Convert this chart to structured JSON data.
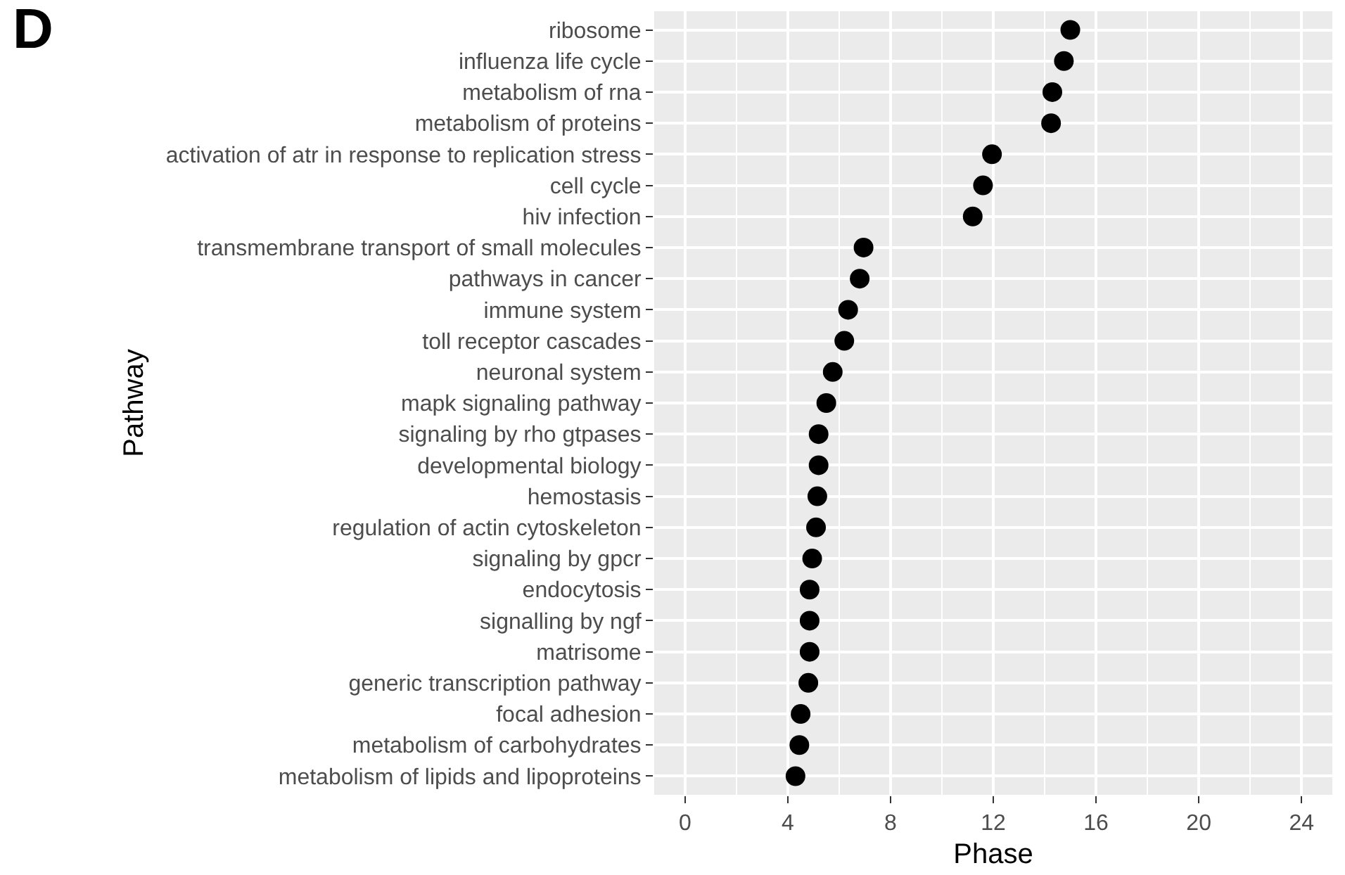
{
  "chart_data": {
    "type": "scatter",
    "xlabel": "Phase",
    "ylabel": "Pathway",
    "annotations": [
      "D"
    ],
    "categories": [
      "ribosome",
      "influenza life cycle",
      "metabolism of rna",
      "metabolism of proteins",
      "activation of atr in response to replication stress",
      "cell cycle",
      "hiv infection",
      "transmembrane transport of small molecules",
      "pathways in cancer",
      "immune system",
      "toll receptor cascades",
      "neuronal system",
      "mapk signaling pathway",
      "signaling by rho gtpases",
      "developmental biology",
      "hemostasis",
      "regulation of actin cytoskeleton",
      "signaling by gpcr",
      "endocytosis",
      "signalling by ngf",
      "matrisome",
      "generic transcription pathway",
      "focal adhesion",
      "metabolism of carbohydrates",
      "metabolism of lipids and lipoproteins"
    ],
    "values": [
      15.0,
      14.75,
      14.3,
      14.25,
      11.95,
      11.6,
      11.2,
      6.95,
      6.8,
      6.35,
      6.2,
      5.75,
      5.5,
      5.2,
      5.2,
      5.15,
      5.1,
      4.95,
      4.85,
      4.85,
      4.85,
      4.8,
      4.5,
      4.45,
      4.3
    ],
    "color": "#000000",
    "marker": "circle",
    "orientation": "horizontal",
    "xlim": [
      -1.2,
      25.2
    ],
    "xticks": [
      0,
      4,
      8,
      12,
      16,
      20,
      24
    ],
    "grid": true
  }
}
